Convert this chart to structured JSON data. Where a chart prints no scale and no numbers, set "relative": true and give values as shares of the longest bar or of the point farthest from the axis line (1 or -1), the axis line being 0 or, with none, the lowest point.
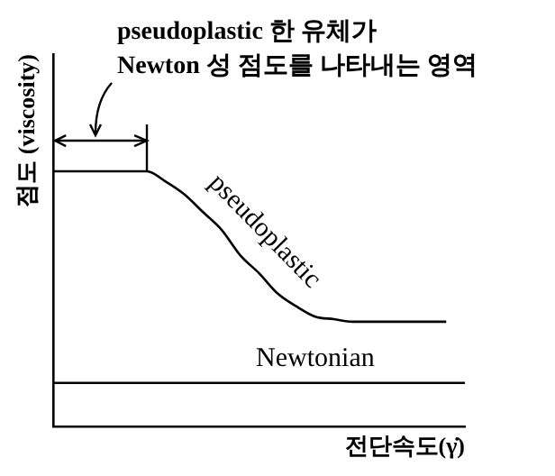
{
  "chart_data": {
    "type": "line",
    "relative": true,
    "xlabel": "전단속도(γ̇)",
    "ylabel": "점도 (viscosity)",
    "categories": [
      null,
      null,
      null,
      null,
      null,
      null,
      null,
      null,
      null,
      null,
      null,
      null,
      null,
      null,
      null,
      null,
      null,
      null,
      null,
      null,
      null,
      null,
      null
    ],
    "series": [
      {
        "name": "pseudoplastic",
        "color": "#000000",
        "values": [
          1,
          1,
          1,
          1,
          1,
          1,
          0.96,
          0.91,
          0.84,
          0.77,
          0.67,
          0.6,
          0.52,
          0.47,
          0.43,
          0.42,
          0.41,
          0.41,
          0.41,
          0.41,
          0.41,
          0.41,
          null
        ]
      },
      {
        "name": "Newtonian",
        "color": "#000000",
        "values": [
          0.17,
          0.17,
          0.17,
          0.17,
          0.17,
          0.17,
          0.17,
          0.17,
          0.17,
          0.17,
          0.17,
          0.17,
          0.17,
          0.17,
          0.17,
          0.17,
          0.17,
          0.17,
          0.17,
          0.17,
          0.17,
          0.17,
          0.17
        ]
      }
    ],
    "annotations": [
      "pseudoplastic 한 유체가\nNewton 성 점도를 나타내는 영역"
    ],
    "marker": "none",
    "legend": false,
    "grid": false,
    "tick_labels": false
  }
}
